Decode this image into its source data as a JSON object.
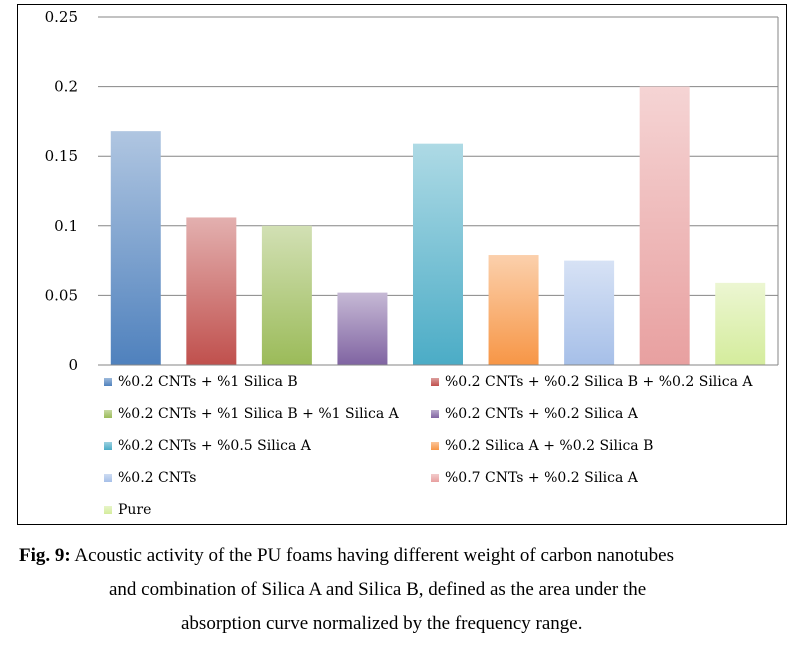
{
  "chart_data": {
    "type": "bar",
    "title": "",
    "xlabel": "",
    "ylabel": "",
    "ylim": [
      0,
      0.25
    ],
    "yticks": [
      "0",
      "0.05",
      "0.1",
      "0.15",
      "0.2",
      "0.25"
    ],
    "grid": true,
    "legend_position": "bottom",
    "series": [
      {
        "name": "%0.2 CNTs + %1 Silica B",
        "value": 0.168,
        "color": "#4f81bd"
      },
      {
        "name": "%0.2 CNTs + %0.2 Silica B + %0.2 Silica A",
        "value": 0.106,
        "color": "#c0504d"
      },
      {
        "name": "%0.2 CNTs + %1 Silica B + %1 Silica A",
        "value": 0.1,
        "color": "#9bbb59"
      },
      {
        "name": "%0.2 CNTs + %0.2 Silica A",
        "value": 0.052,
        "color": "#8064a2"
      },
      {
        "name": "%0.2 CNTs + %0.5 Silica A",
        "value": 0.159,
        "color": "#4bacc6"
      },
      {
        "name": "%0.2 Silica A + %0.2 Silica B",
        "value": 0.079,
        "color": "#f79646"
      },
      {
        "name": "%0.2 CNTs",
        "value": 0.075,
        "color": "#a6bfe8"
      },
      {
        "name": "%0.7 CNTs + %0.2 Silica A",
        "value": 0.2,
        "color": "#e8a0a0"
      },
      {
        "name": "Pure",
        "value": 0.059,
        "color": "#d4ec9c"
      }
    ]
  },
  "caption": {
    "label": "Fig. 9:",
    "line1": " Acoustic activity of the PU foams having different weight of carbon nanotubes",
    "line2": "and combination of Silica A and Silica B, defined as the area under the",
    "line3": "absorption curve normalized by the frequency range."
  }
}
